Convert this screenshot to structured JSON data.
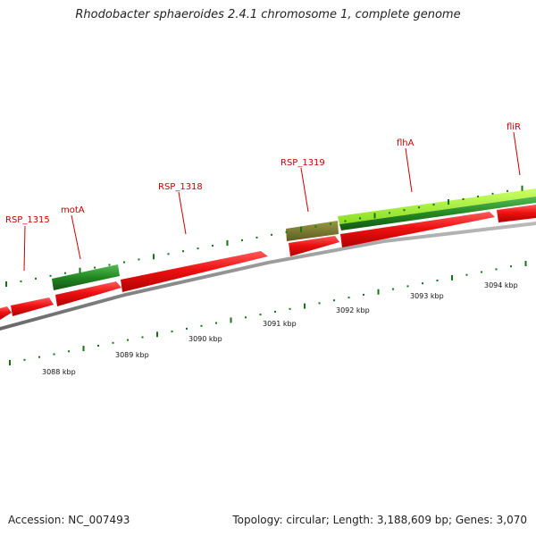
{
  "title": "Rhodobacter sphaeroides 2.4.1 chromosome 1, complete genome",
  "accession": "Accession: NC_007493",
  "summary": "Topology: circular; Length: 3,188,609 bp; Genes: 3,070",
  "scale_labels": [
    "3088 kbp",
    "3089 kbp",
    "3090 kbp",
    "3091 kbp",
    "3092 kbp",
    "3093 kbp",
    "3094 kbp"
  ],
  "gene_labels": [
    "RSP_1315",
    "motA",
    "RSP_1318",
    "RSP_1319",
    "flhA",
    "fliR"
  ],
  "colors": {
    "forward_gene": "#ee1111",
    "reverse_gene": "#228822",
    "highlight_gene": "#99ee33",
    "olive_gene": "#777733",
    "backbone": "#888888",
    "tick": "#117711",
    "label": "#cc0000"
  }
}
